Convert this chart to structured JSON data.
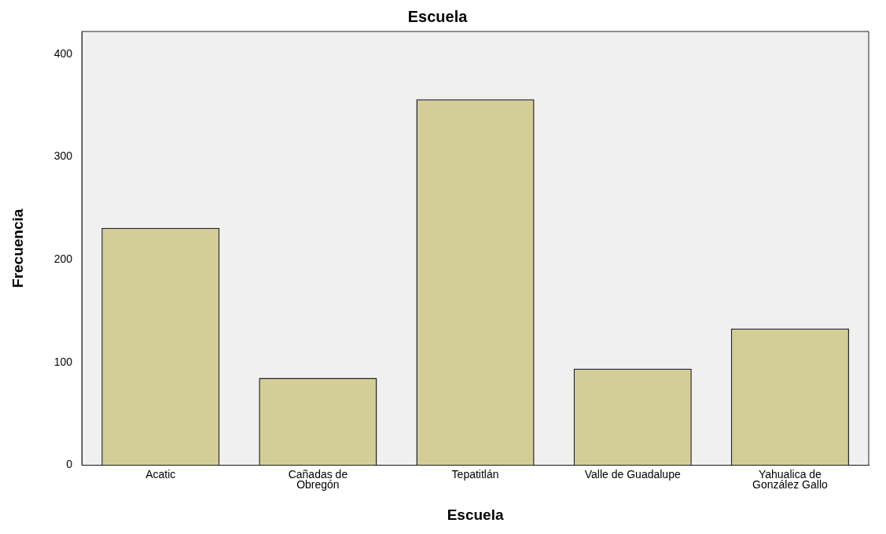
{
  "chart_data": {
    "type": "bar",
    "title": "Escuela",
    "xlabel": "Escuela",
    "ylabel": "Frecuencia",
    "categories": [
      "Acatic",
      "Cañadas de\nObregón",
      "Tepatitlán",
      "Valle de Guadalupe",
      "Yahualica de\nGonzález Gallo"
    ],
    "values": [
      231,
      85,
      356,
      94,
      133
    ],
    "color": "#d3ce97",
    "ylim": [
      0,
      422
    ],
    "yticks": [
      0,
      100,
      200,
      300,
      400
    ],
    "grid": false,
    "legend": false
  }
}
